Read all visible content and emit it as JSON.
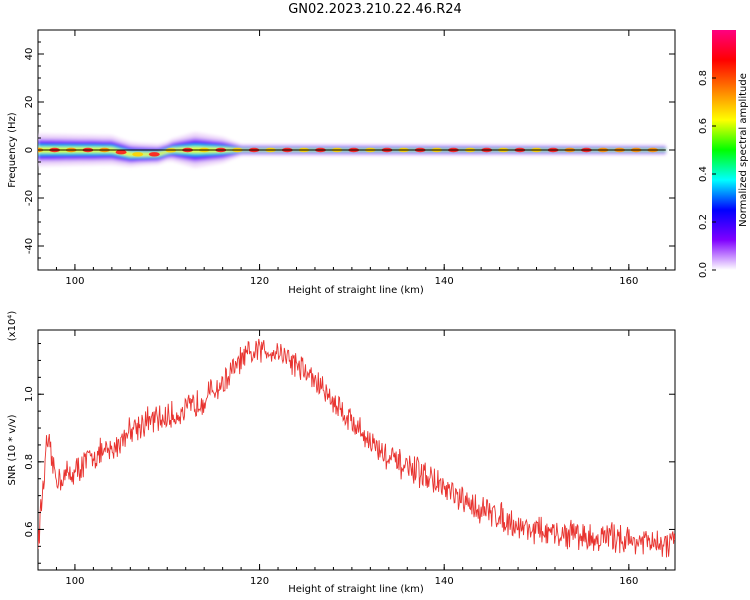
{
  "title": "GN02.2023.210.22.46.R24",
  "colors": {
    "snr_line": "#e8332f",
    "frame": "#000000",
    "background": "#ffffff",
    "zero_line": "#000000"
  },
  "chart_data": [
    {
      "type": "heatmap",
      "xlabel": "Height of straight line (km)",
      "ylabel": "Frequency (Hz)",
      "xlim": [
        96,
        165
      ],
      "ylim": [
        -50,
        50
      ],
      "xticks": [
        100,
        120,
        140,
        160
      ],
      "yticks": [
        -40,
        -20,
        0,
        20,
        40
      ],
      "x_range_with_signal": [
        96,
        164
      ],
      "grid": false,
      "colorbar": {
        "label": "Normalized spectral amplitude",
        "range": [
          0,
          1
        ],
        "ticks": [
          "0.0",
          "0.2",
          "0.4",
          "0.6",
          "0.8"
        ],
        "colors": [
          "#ffffff",
          "#8000ff",
          "#0000ff",
          "#00ffff",
          "#00ff00",
          "#ffff00",
          "#ff8000",
          "#ff0000",
          "#ff0080"
        ]
      },
      "spectral_center_hz": [
        {
          "x": 96,
          "f": 0
        },
        {
          "x": 104,
          "f": 0
        },
        {
          "x": 106,
          "f": -1.8
        },
        {
          "x": 109,
          "f": -1.8
        },
        {
          "x": 110.5,
          "f": 0
        },
        {
          "x": 164,
          "f": 0
        }
      ],
      "spectral_half_width_hz": [
        {
          "x": 96,
          "w": 5
        },
        {
          "x": 104,
          "w": 4.5
        },
        {
          "x": 107,
          "w": 3.5
        },
        {
          "x": 110,
          "w": 3
        },
        {
          "x": 113,
          "w": 5.5
        },
        {
          "x": 116,
          "w": 4
        },
        {
          "x": 118,
          "w": 1.8
        },
        {
          "x": 164,
          "w": 1.6
        }
      ]
    },
    {
      "type": "line",
      "xlabel": "Height of straight line (km)",
      "ylabel": "SNR (10 * v/v)",
      "y_multiplier": "(x10⁴)",
      "xlim": [
        96,
        165
      ],
      "ylim": [
        0.48,
        1.19
      ],
      "xticks": [
        100,
        120,
        140,
        160
      ],
      "yticks": [
        "0.6",
        "0.8",
        "1.0"
      ],
      "grid": false,
      "series": [
        {
          "x": [
            96,
            97,
            98,
            100,
            102,
            104,
            106,
            108,
            110,
            112,
            114,
            116,
            118,
            120,
            122,
            124,
            126,
            128,
            130,
            132,
            134,
            136,
            138,
            140,
            142,
            144,
            146,
            148,
            150,
            152,
            154,
            156,
            158,
            160,
            162,
            164,
            165
          ],
          "values": [
            0.56,
            0.86,
            0.75,
            0.77,
            0.82,
            0.83,
            0.9,
            0.92,
            0.93,
            0.95,
            0.99,
            1.03,
            1.1,
            1.13,
            1.13,
            1.09,
            1.04,
            0.98,
            0.92,
            0.86,
            0.81,
            0.78,
            0.76,
            0.72,
            0.68,
            0.66,
            0.64,
            0.61,
            0.6,
            0.58,
            0.59,
            0.57,
            0.58,
            0.57,
            0.56,
            0.55,
            0.57
          ]
        }
      ]
    }
  ]
}
